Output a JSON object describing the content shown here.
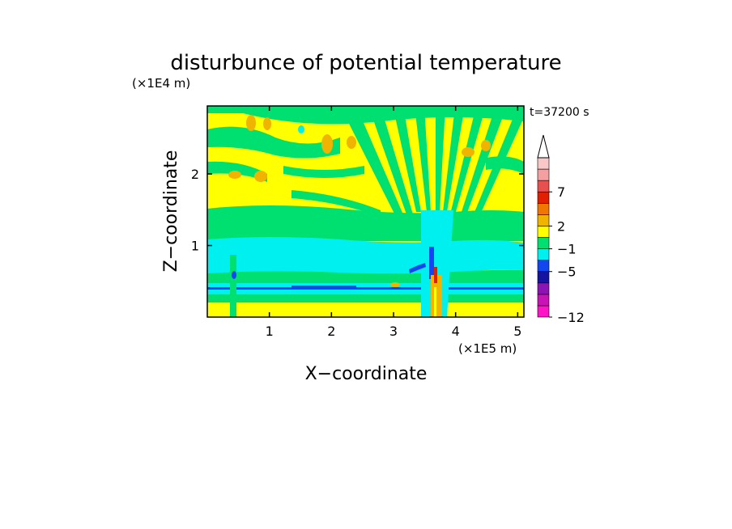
{
  "chart_data": {
    "type": "heatmap",
    "title": "disturbunce of potential temperature",
    "time_label": "t=37200 s",
    "xlabel": "X−coordinate",
    "ylabel": "Z−coordinate",
    "x_unit": "(×1E5 m)",
    "y_unit": "(×1E4 m)",
    "xlim": [
      0,
      5.1
    ],
    "ylim": [
      0,
      2.95
    ],
    "x_ticks": [
      {
        "value": 1,
        "label": "1"
      },
      {
        "value": 2,
        "label": "2"
      },
      {
        "value": 3,
        "label": "3"
      },
      {
        "value": 4,
        "label": "4"
      },
      {
        "value": 5,
        "label": "5"
      }
    ],
    "y_ticks": [
      {
        "value": 1,
        "label": "1"
      },
      {
        "value": 2,
        "label": "2"
      }
    ],
    "colorbar": {
      "levels": [
        {
          "color": "#ff14c8"
        },
        {
          "color": "#c814b4"
        },
        {
          "color": "#8c14b4"
        },
        {
          "color": "#1414a0"
        },
        {
          "color": "#1446f0"
        },
        {
          "color": "#00f0f0"
        },
        {
          "color": "#00e070"
        },
        {
          "color": "#ffff00"
        },
        {
          "color": "#f0b400"
        },
        {
          "color": "#f07800"
        },
        {
          "color": "#e02000"
        },
        {
          "color": "#e85050"
        },
        {
          "color": "#f4a0a0"
        },
        {
          "color": "#f8c8c8"
        }
      ],
      "tick_labels": [
        {
          "label": "−12",
          "level": 0
        },
        {
          "label": "−5",
          "level": 4
        },
        {
          "label": "−1",
          "level": 6
        },
        {
          "label": "2",
          "level": 8
        },
        {
          "label": "7",
          "level": 11
        }
      ]
    }
  }
}
